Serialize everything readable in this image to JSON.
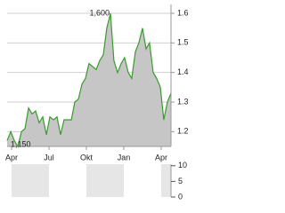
{
  "chart_data": [
    {
      "type": "area",
      "x": [
        -0.36,
        -0.07,
        0.21,
        0.5,
        0.79,
        1.07,
        1.36,
        1.64,
        1.93,
        2.21,
        2.5,
        2.79,
        3.07,
        3.36,
        3.64,
        3.93,
        4.21,
        4.5,
        4.79,
        5.07,
        5.36,
        5.64,
        5.93,
        6.21,
        6.5,
        6.79,
        7.07,
        7.36,
        7.64,
        7.93,
        8.21,
        8.5,
        8.79,
        9.07,
        9.36,
        9.64,
        9.93,
        10.21,
        10.5,
        10.79,
        11.07,
        11.36,
        11.64,
        11.93,
        12.21,
        12.5,
        12.79
      ],
      "series": [
        {
          "color": "#3a9a2e",
          "fill": "#c6c6c6",
          "values": [
            1.17,
            1.2,
            1.17,
            1.15,
            1.2,
            1.21,
            1.28,
            1.26,
            1.27,
            1.23,
            1.25,
            1.19,
            1.25,
            1.24,
            1.25,
            1.19,
            1.24,
            1.24,
            1.24,
            1.3,
            1.31,
            1.36,
            1.38,
            1.43,
            1.42,
            1.41,
            1.44,
            1.46,
            1.55,
            1.6,
            1.44,
            1.4,
            1.43,
            1.45,
            1.4,
            1.38,
            1.47,
            1.5,
            1.55,
            1.48,
            1.5,
            1.4,
            1.38,
            1.35,
            1.24,
            1.3,
            1.33
          ]
        }
      ],
      "xlim": [
        -0.36,
        12.79
      ],
      "xticks": [
        {
          "value": 0,
          "label": "Apr"
        },
        {
          "value": 3,
          "label": "Jul"
        },
        {
          "value": 6,
          "label": "Okt"
        },
        {
          "value": 9,
          "label": "Jan"
        },
        {
          "value": 12,
          "label": "Apr"
        }
      ],
      "ylim": [
        1.15,
        1.63
      ],
      "yticks": [
        1.2,
        1.3,
        1.4,
        1.5,
        1.6
      ],
      "grid": true,
      "annotations": [
        {
          "value": 1.6,
          "label": "1,600"
        },
        {
          "value": 1.15,
          "label": "1,150"
        }
      ]
    },
    {
      "type": "volume",
      "xlim": [
        -0.36,
        12.79
      ],
      "bands": [
        [
          0,
          3
        ],
        [
          6,
          9
        ],
        [
          12,
          12.79
        ]
      ],
      "band_color": "#e6e6e6",
      "ylim": [
        0,
        10.5
      ],
      "yticks": [
        0,
        5,
        10
      ]
    }
  ]
}
